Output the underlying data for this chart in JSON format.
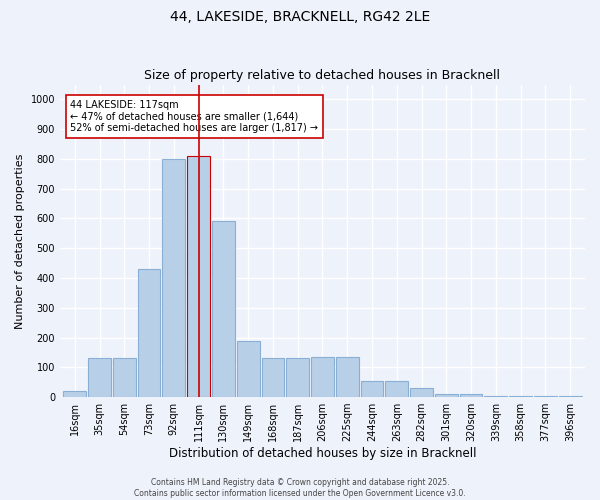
{
  "title_line1": "44, LAKESIDE, BRACKNELL, RG42 2LE",
  "title_line2": "Size of property relative to detached houses in Bracknell",
  "xlabel": "Distribution of detached houses by size in Bracknell",
  "ylabel": "Number of detached properties",
  "categories": [
    "16sqm",
    "35sqm",
    "54sqm",
    "73sqm",
    "92sqm",
    "111sqm",
    "130sqm",
    "149sqm",
    "168sqm",
    "187sqm",
    "206sqm",
    "225sqm",
    "244sqm",
    "263sqm",
    "282sqm",
    "301sqm",
    "320sqm",
    "339sqm",
    "358sqm",
    "377sqm",
    "396sqm"
  ],
  "values": [
    20,
    130,
    130,
    430,
    800,
    810,
    590,
    190,
    130,
    130,
    135,
    135,
    55,
    55,
    30,
    12,
    10,
    5,
    5,
    4,
    3
  ],
  "bar_color": "#b8cfe8",
  "bar_edge_color": "#8aafd4",
  "highlight_index": 5,
  "highlight_bar_color": "#b8cfe8",
  "highlight_bar_edge_color": "#cc0000",
  "vline_color": "#cc0000",
  "annotation_text": "44 LAKESIDE: 117sqm\n← 47% of detached houses are smaller (1,644)\n52% of semi-detached houses are larger (1,817) →",
  "annotation_box_color": "#ffffff",
  "annotation_box_edge_color": "#cc0000",
  "ylim": [
    0,
    1050
  ],
  "yticks": [
    0,
    100,
    200,
    300,
    400,
    500,
    600,
    700,
    800,
    900,
    1000
  ],
  "background_color": "#eef2fa",
  "grid_color": "#ffffff",
  "footer_text": "Contains HM Land Registry data © Crown copyright and database right 2025.\nContains public sector information licensed under the Open Government Licence v3.0.",
  "title_fontsize": 10,
  "subtitle_fontsize": 9,
  "axis_label_fontsize": 8,
  "tick_fontsize": 7,
  "annotation_fontsize": 7
}
